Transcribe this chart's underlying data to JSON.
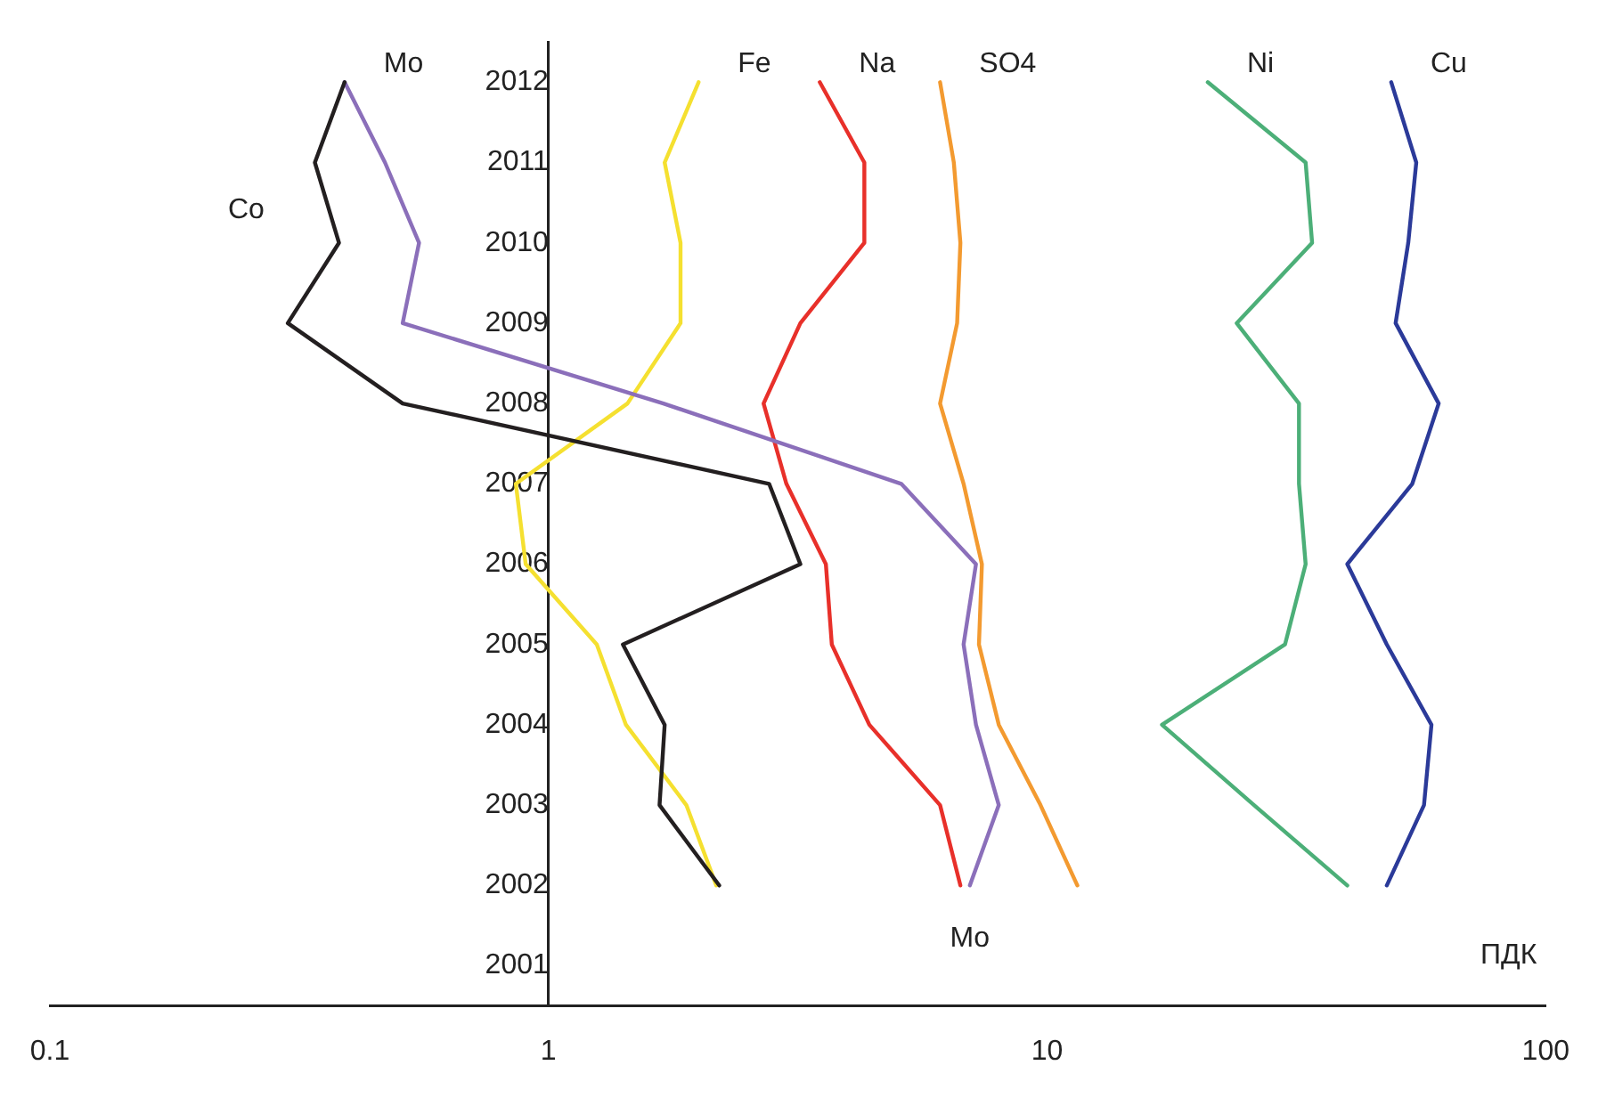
{
  "chart_data": {
    "type": "line",
    "orientation": "horizontal",
    "log": "x",
    "xlabel": "ПДК",
    "categories": [
      "2012",
      "2011",
      "2010",
      "2009",
      "2008",
      "2007",
      "2006",
      "2005",
      "2004",
      "2003",
      "2002",
      "2001"
    ],
    "xlim": [
      0.1,
      100
    ],
    "xticks": [
      0.1,
      1,
      10,
      100
    ],
    "grid": false,
    "legend": false,
    "marker": "none",
    "line_style": "solid",
    "series": [
      {
        "name": "Co",
        "color": "#231f20",
        "values": [
          0.39,
          0.34,
          0.38,
          0.3,
          0.51,
          2.77,
          3.2,
          1.41,
          1.71,
          1.67,
          2.2,
          null
        ]
      },
      {
        "name": "Mo",
        "color": "#8b6fba",
        "values": [
          0.39,
          0.47,
          0.55,
          0.51,
          1.7,
          5.1,
          7.2,
          6.8,
          7.2,
          8.0,
          7.0,
          null
        ]
      },
      {
        "name": "Fe",
        "color": "#f5e030",
        "values": [
          2.0,
          1.71,
          1.84,
          1.84,
          1.44,
          0.86,
          0.9,
          1.25,
          1.43,
          1.89,
          2.17,
          null
        ]
      },
      {
        "name": "Na",
        "color": "#e8302a",
        "values": [
          3.5,
          4.3,
          4.3,
          3.2,
          2.7,
          3.0,
          3.6,
          3.7,
          4.4,
          6.1,
          6.7,
          null
        ]
      },
      {
        "name": "SO4",
        "color": "#f39a30",
        "values": [
          6.1,
          6.5,
          6.7,
          6.6,
          6.1,
          6.8,
          7.4,
          7.3,
          8.0,
          9.7,
          11.5,
          null
        ]
      },
      {
        "name": "Ni",
        "color": "#4caf78",
        "values": [
          21,
          33,
          34,
          24,
          32,
          32,
          33,
          30,
          17,
          26,
          40,
          null
        ]
      },
      {
        "name": "Cu",
        "color": "#2b3a99",
        "values": [
          49,
          55,
          53,
          50,
          61,
          54,
          40,
          48,
          59,
          57,
          48,
          null
        ]
      }
    ],
    "annotations": [
      {
        "text": "Mo",
        "x": 7,
        "y": "2002"
      }
    ]
  }
}
